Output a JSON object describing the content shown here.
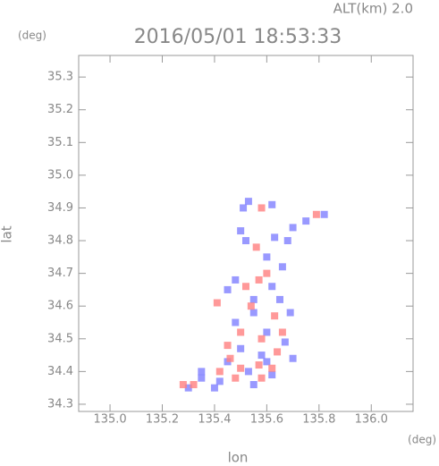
{
  "header": {
    "altitude": "ALT(km)  2.0",
    "y_unit": "(deg)",
    "x_unit": "(deg)"
  },
  "chart_data": {
    "type": "scatter",
    "title": "2016/05/01 18:53:33",
    "x_label": "lon",
    "y_label": "lat",
    "xlim": [
      134.88,
      136.16
    ],
    "ylim": [
      34.278,
      35.366
    ],
    "xticks": [
      {
        "value": 135,
        "label": "135.0"
      },
      135.2,
      135.4,
      135.6,
      135.8,
      {
        "value": 136,
        "label": "136.0"
      }
    ],
    "yticks": [
      34.3,
      34.4,
      34.5,
      34.6,
      34.7,
      34.8,
      34.9,
      {
        "value": 35,
        "label": "35.0"
      },
      35.1,
      35.2,
      35.3
    ],
    "grid": false,
    "series": [
      {
        "color": "#7f7fff",
        "x": [
          135.53,
          135.51,
          135.62,
          135.5,
          135.52,
          135.63,
          135.68,
          135.7,
          135.75,
          135.82,
          135.6,
          135.66,
          135.48,
          135.45,
          135.62,
          135.65,
          135.55,
          135.48,
          135.6,
          135.67,
          135.5,
          135.58,
          135.7,
          135.45,
          135.53,
          135.62,
          135.42,
          135.35,
          135.3,
          135.55,
          135.4,
          135.6,
          135.35,
          135.55,
          135.69
        ],
        "values": [
          34.92,
          34.9,
          34.91,
          34.83,
          34.8,
          34.81,
          34.8,
          34.84,
          34.86,
          34.88,
          34.75,
          34.72,
          34.68,
          34.65,
          34.66,
          34.62,
          34.58,
          34.55,
          34.52,
          34.49,
          34.47,
          34.45,
          34.44,
          34.43,
          34.4,
          34.39,
          34.37,
          34.38,
          34.35,
          34.36,
          34.35,
          34.43,
          34.4,
          34.62,
          34.58
        ]
      },
      {
        "color": "#ff7f7f",
        "x": [
          135.58,
          135.79,
          135.56,
          135.6,
          135.52,
          135.57,
          135.41,
          135.54,
          135.63,
          135.5,
          135.58,
          135.64,
          135.46,
          135.57,
          135.62,
          135.5,
          135.42,
          135.32,
          135.28,
          135.58,
          135.48,
          135.66,
          135.45
        ],
        "values": [
          34.9,
          34.88,
          34.78,
          34.7,
          34.66,
          34.68,
          34.61,
          34.6,
          34.57,
          34.52,
          34.5,
          34.46,
          34.44,
          34.42,
          34.41,
          34.41,
          34.4,
          34.36,
          34.36,
          34.38,
          34.38,
          34.52,
          34.48
        ]
      }
    ]
  }
}
